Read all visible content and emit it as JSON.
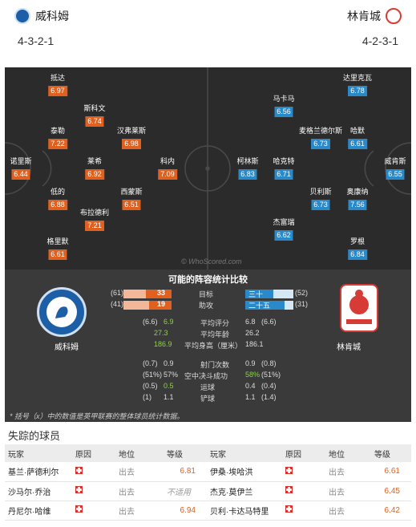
{
  "header": {
    "home": {
      "name": "威科姆",
      "formation": "4-3-2-1"
    },
    "away": {
      "name": "林肯城",
      "formation": "4-2-3-1"
    }
  },
  "pitch": {
    "home_players": [
      {
        "name": "抵达",
        "rating": "6.97"
      },
      {
        "name": "斯科文",
        "rating": "6.74"
      },
      {
        "name": "泰勒",
        "rating": "7.22"
      },
      {
        "name": "汉弗莱斯",
        "rating": "6.98"
      },
      {
        "name": "诺里斯",
        "rating": "6.44"
      },
      {
        "name": "莱希",
        "rating": "6.92"
      },
      {
        "name": "科内",
        "rating": "7.09"
      },
      {
        "name": "低的",
        "rating": "6.88"
      },
      {
        "name": "西蒙斯",
        "rating": "6.51"
      },
      {
        "name": "布拉德利",
        "rating": "7.21"
      },
      {
        "name": "格里默",
        "rating": "6.61"
      }
    ],
    "away_players": [
      {
        "name": "达里克瓦",
        "rating": "6.78"
      },
      {
        "name": "马卡马",
        "rating": "6.56"
      },
      {
        "name": "麦格兰德尔斯",
        "rating": "6.73"
      },
      {
        "name": "哈默",
        "rating": "6.61"
      },
      {
        "name": "柯林斯",
        "rating": "6.83"
      },
      {
        "name": "哈克特",
        "rating": "6.71"
      },
      {
        "name": "威肯斯",
        "rating": "6.55"
      },
      {
        "name": "贝利斯",
        "rating": "6.73"
      },
      {
        "name": "奥康纳",
        "rating": "7.56"
      },
      {
        "name": "杰富瑞",
        "rating": "6.62"
      },
      {
        "name": "罗根",
        "rating": "6.84"
      }
    ],
    "watermark": "© WhoScored.com"
  },
  "comparison": {
    "title": "可能的阵容统计比较",
    "home_name": "威科姆",
    "away_name": "林肯城",
    "rows": [
      {
        "label": "目标",
        "home_total": "(61)",
        "home": "33",
        "home_frac": 0.54,
        "away": "三十",
        "away_total": "(52)",
        "away_frac": 0.58
      },
      {
        "label": "助攻",
        "home_total": "(41)",
        "home": "19",
        "home_frac": 0.46,
        "away": "二十五",
        "away_total": "(31)",
        "away_frac": 0.81
      }
    ],
    "stats": [
      {
        "label": "平均评分",
        "home_total": "(6.6)",
        "home": "6.9",
        "away": "6.8",
        "away_total": "(6.6)",
        "home_green": true
      },
      {
        "label": "平均年龄",
        "home_total": "",
        "home": "27.3",
        "away": "26.2",
        "away_total": "",
        "home_green": true
      },
      {
        "label": "平均身高（厘米）",
        "home_total": "",
        "home": "186.9",
        "away": "186.1",
        "away_total": "",
        "home_green": true
      },
      {
        "label": "射门次数",
        "home_total": "(0.7)",
        "home": "0.9",
        "away": "0.9",
        "away_total": "(0.8)",
        "home_green": false
      },
      {
        "label": "空中决斗成功",
        "home_total": "(51%)",
        "home": "57%",
        "away": "58%",
        "away_total": "(51%)",
        "home_green": false,
        "away_green": true
      },
      {
        "label": "运球",
        "home_total": "(0.5)",
        "home": "0.5",
        "away": "0.4",
        "away_total": "(0.4)",
        "home_green": true
      },
      {
        "label": "铲球",
        "home_total": "(1)",
        "home": "1.1",
        "away": "1.1",
        "away_total": "(1.4)",
        "home_green": false
      }
    ],
    "note": "* 括号（x）中的数值是英甲联赛的整体球员统计数据。"
  },
  "missing": {
    "title": "失踪的球员",
    "headers": [
      "玩家",
      "原因",
      "地位",
      "等级",
      "玩家",
      "原因",
      "地位",
      "等级"
    ],
    "rows": [
      {
        "p1": "基兰·萨德利尔",
        "s1": "出去",
        "r1": "6.81",
        "p2": "伊桑·埃哈洪",
        "s2": "出去",
        "r2": "6.61"
      },
      {
        "p1": "沙马尔·乔治",
        "s1": "出去",
        "r1": "不适用",
        "p2": "杰克·莫伊兰",
        "s2": "出去",
        "r2": "6.45"
      },
      {
        "p1": "丹尼尔·哈维",
        "s1": "出去",
        "r1": "6.94",
        "p2": "贝利·卡达马特里",
        "s2": "出去",
        "r2": "6.42"
      }
    ]
  },
  "colors": {
    "home": "#e0601f",
    "away": "#2a89c8",
    "better": "#8cd24a"
  }
}
